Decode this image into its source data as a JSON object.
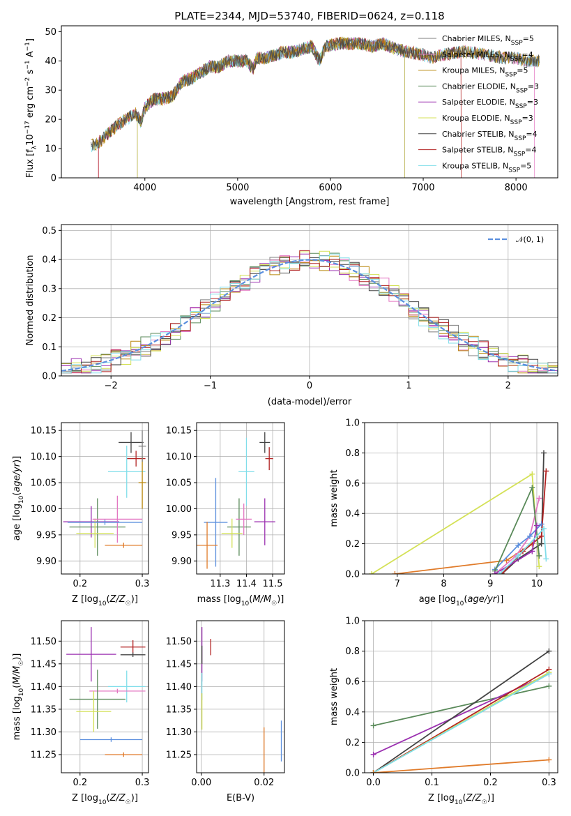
{
  "title": "PLATE=2344, MJD=53740, FIBERID=0624, z=0.118",
  "colors": {
    "Chabrier MILES": "#7f7f7f",
    "Salpeter MILES": "#e377c2",
    "Kroupa MILES": "#b8860b",
    "Chabrier ELODIE": "#5a8a5a",
    "Salpeter ELODIE": "#9b30b0",
    "Kroupa ELODIE": "#d4e157",
    "Chabrier STELIB": "#444444",
    "Salpeter STELIB": "#b22222",
    "Kroupa STELIB": "#80deea",
    "orange": "#e07b2a",
    "blue": "#5b8fde"
  },
  "chart_data": [
    {
      "id": "spectrum",
      "type": "line",
      "title": "PLATE=2344, MJD=53740, FIBERID=0624, z=0.118",
      "xlabel": "wavelength [Angstrom, rest frame]",
      "ylabel": "Flux [f_λ10⁻¹⁷ erg cm⁻² s⁻¹ A⁻¹]",
      "xlim": [
        3100,
        8450
      ],
      "ylim": [
        0,
        52
      ],
      "xticks": [
        "4000",
        "5000",
        "6000",
        "7000",
        "8000"
      ],
      "yticks": [
        "0",
        "10",
        "20",
        "30",
        "40",
        "50"
      ],
      "legend_placement": "right",
      "legend": [
        {
          "pre": "Chabrier MILES, N",
          "sub": "SSP",
          "post": "=5"
        },
        {
          "pre": "Salpeter MILES, N",
          "sub": "SSP",
          "post": "=4"
        },
        {
          "pre": "Kroupa MILES, N",
          "sub": "SSP",
          "post": "=5"
        },
        {
          "pre": "Chabrier ELODIE, N",
          "sub": "SSP",
          "post": "=3"
        },
        {
          "pre": "Salpeter ELODIE, N",
          "sub": "SSP",
          "post": "=3"
        },
        {
          "pre": "Kroupa ELODIE, N",
          "sub": "SSP",
          "post": "=3"
        },
        {
          "pre": "Chabrier STELIB, N",
          "sub": "SSP",
          "post": "=4"
        },
        {
          "pre": "Salpeter STELIB, N",
          "sub": "SSP",
          "post": "=4"
        },
        {
          "pre": "Kroupa STELIB, N",
          "sub": "SSP",
          "post": "=5"
        }
      ],
      "envelope": [
        [
          3420,
          11
        ],
        [
          3500,
          12
        ],
        [
          3600,
          15
        ],
        [
          3700,
          18
        ],
        [
          3800,
          20
        ],
        [
          3900,
          22
        ],
        [
          3960,
          19
        ],
        [
          4000,
          24
        ],
        [
          4100,
          27
        ],
        [
          4200,
          27
        ],
        [
          4300,
          28
        ],
        [
          4400,
          33
        ],
        [
          4500,
          34
        ],
        [
          4600,
          36
        ],
        [
          4700,
          38
        ],
        [
          4800,
          38
        ],
        [
          4900,
          40
        ],
        [
          5000,
          40
        ],
        [
          5100,
          40
        ],
        [
          5170,
          37
        ],
        [
          5200,
          41
        ],
        [
          5300,
          41
        ],
        [
          5400,
          42
        ],
        [
          5500,
          43
        ],
        [
          5600,
          43
        ],
        [
          5700,
          44
        ],
        [
          5800,
          45
        ],
        [
          5880,
          40
        ],
        [
          5950,
          45
        ],
        [
          6100,
          46
        ],
        [
          6300,
          46
        ],
        [
          6450,
          45
        ],
        [
          6560,
          46
        ],
        [
          6700,
          44
        ],
        [
          6850,
          43
        ],
        [
          7000,
          42
        ],
        [
          7100,
          41
        ],
        [
          7200,
          42
        ],
        [
          7400,
          43
        ],
        [
          7500,
          43
        ],
        [
          7700,
          42
        ],
        [
          7850,
          41
        ],
        [
          8000,
          41
        ],
        [
          8100,
          40
        ],
        [
          8200,
          40
        ]
      ],
      "cuts": {
        "Salpeter MILES": [
          3500,
          8200
        ],
        "Chabrier ELODIE": [
          3920,
          6800
        ],
        "Salpeter ELODIE": [
          3920,
          6800
        ],
        "Kroupa ELODIE": [
          3920,
          6800
        ],
        "Salpeter STELIB": [
          3500,
          7410
        ],
        "Kroupa STELIB": [
          3420,
          8250
        ],
        "Chabrier MILES": [
          3420,
          8250
        ],
        "Kroupa MILES": [
          3420,
          8250
        ],
        "Chabrier STELIB": [
          3420,
          8250
        ]
      }
    },
    {
      "id": "residuals",
      "type": "line",
      "xlabel": "(data-model)/error",
      "ylabel": "Normed distribution",
      "xlim": [
        -2.5,
        2.5
      ],
      "ylim": [
        0,
        0.52
      ],
      "xticks": [
        {
          "v": -2,
          "t": "−2"
        },
        {
          "v": -1,
          "t": "−1"
        },
        {
          "v": 0,
          "t": "0"
        },
        {
          "v": 1,
          "t": "1"
        },
        {
          "v": 2,
          "t": "2"
        }
      ],
      "yticks": [
        "0.0",
        "0.1",
        "0.2",
        "0.3",
        "0.4",
        "0.5"
      ],
      "grid": true,
      "legend_placement": "top-right",
      "legend": [
        "𝒩(0, 1)"
      ],
      "bin_width": 0.1
    },
    {
      "id": "age-vs-z",
      "type": "scatter",
      "xlabel": "Z [log₁₀(Z/Z☉)]",
      "ylabel": "age  [log₁₀(age/yr)]",
      "xlim": [
        0.17,
        0.31
      ],
      "ylim": [
        9.875,
        10.165
      ],
      "xticks": [
        "0.2",
        "0.3"
      ],
      "yticks": [
        "9.90",
        "9.95",
        "10.00",
        "10.05",
        "10.10",
        "10.15"
      ],
      "grid": true,
      "points": [
        {
          "series": "Chabrier STELIB",
          "x": 0.282,
          "y": 10.127,
          "xe": 0.02,
          "ye": 0.02
        },
        {
          "series": "Salpeter STELIB",
          "x": 0.29,
          "y": 10.096,
          "xe": 0.015,
          "ye": 0.015
        },
        {
          "series": "Kroupa STELIB",
          "x": 0.275,
          "y": 10.071,
          "xe": 0.03,
          "ye": 0.05
        },
        {
          "series": "Salpeter ELODIE",
          "x": 0.218,
          "y": 9.975,
          "xe": 0.045,
          "ye": 0.03
        },
        {
          "series": "Chabrier ELODIE",
          "x": 0.228,
          "y": 9.965,
          "xe": 0.045,
          "ye": 0.055
        },
        {
          "series": "Kroupa ELODIE",
          "x": 0.224,
          "y": 9.953,
          "xe": 0.03,
          "ye": 0.028
        },
        {
          "series": "Salpeter MILES",
          "x": 0.26,
          "y": 9.98,
          "xe": 0.04,
          "ye": 0.045
        },
        {
          "series": "Kroupa MILES",
          "x": 0.3,
          "y": 10.05,
          "xe": 0.006,
          "ye": 0.05
        },
        {
          "series": "Chabrier MILES",
          "x": 0.3,
          "y": 10.12,
          "xe": 0.006,
          "ye": 0.03
        },
        {
          "series": "blue",
          "x": 0.24,
          "y": 9.974,
          "xe": 0.06,
          "ye": 0.005
        },
        {
          "series": "orange",
          "x": 0.27,
          "y": 9.93,
          "xe": 0.03,
          "ye": 0.005
        }
      ]
    },
    {
      "id": "age-vs-mass",
      "type": "scatter",
      "xlabel": "mass [log₁₀(M/M☉)]",
      "ylabel": "",
      "xlim": [
        11.21,
        11.545
      ],
      "ylim": [
        9.875,
        10.165
      ],
      "xticks": [
        "11.3",
        "11.4",
        "11.5"
      ],
      "yticks": [
        "9.90",
        "9.95",
        "10.00",
        "10.05",
        "10.10",
        "10.15"
      ],
      "grid": true,
      "points": [
        {
          "series": "Chabrier STELIB",
          "x": 11.47,
          "y": 10.127,
          "xe": 0.02,
          "ye": 0.02
        },
        {
          "series": "Salpeter STELIB",
          "x": 11.487,
          "y": 10.096,
          "xe": 0.015,
          "ye": 0.022
        },
        {
          "series": "Kroupa STELIB",
          "x": 11.4,
          "y": 10.071,
          "xe": 0.03,
          "ye": 0.065
        },
        {
          "series": "Salpeter ELODIE",
          "x": 11.47,
          "y": 9.975,
          "xe": 0.04,
          "ye": 0.045
        },
        {
          "series": "Chabrier ELODIE",
          "x": 11.372,
          "y": 9.965,
          "xe": 0.045,
          "ye": 0.055
        },
        {
          "series": "Kroupa ELODIE",
          "x": 11.345,
          "y": 9.953,
          "xe": 0.04,
          "ye": 0.028
        },
        {
          "series": "Salpeter MILES",
          "x": 11.39,
          "y": 9.98,
          "xe": 0.03,
          "ye": 0.03
        },
        {
          "series": "blue",
          "x": 11.283,
          "y": 9.974,
          "xe": 0.045,
          "ye": 0.085
        },
        {
          "series": "orange",
          "x": 11.25,
          "y": 9.93,
          "xe": 0.04,
          "ye": 0.045
        }
      ]
    },
    {
      "id": "weight-vs-age",
      "type": "line",
      "xlabel": "age  [log₁₀(age/yr)]",
      "ylabel": "mass weight",
      "xlim": [
        6.3,
        10.45
      ],
      "ylim": [
        0,
        1
      ],
      "xticks": [
        "7",
        "8",
        "9",
        "10"
      ],
      "yticks": [
        "0.0",
        "0.2",
        "0.4",
        "0.6",
        "0.8",
        "1.0"
      ],
      "grid": true,
      "series": [
        {
          "name": "Kroupa ELODIE",
          "x": [
            6.45,
            9.9,
            10.05
          ],
          "y": [
            0.0,
            0.66,
            0.05
          ]
        },
        {
          "name": "orange",
          "x": [
            6.95,
            9.35,
            9.9
          ],
          "y": [
            0.0,
            0.09,
            0.2
          ]
        },
        {
          "name": "Chabrier STELIB",
          "x": [
            9.25,
            9.6,
            10.1,
            10.15
          ],
          "y": [
            0.0,
            0.1,
            0.2,
            0.8
          ]
        },
        {
          "name": "Salpeter STELIB",
          "x": [
            9.25,
            9.7,
            10.1,
            10.2
          ],
          "y": [
            0.0,
            0.15,
            0.25,
            0.68
          ]
        },
        {
          "name": "Salpeter MILES",
          "x": [
            9.1,
            9.55,
            9.85,
            10.05
          ],
          "y": [
            0.0,
            0.12,
            0.25,
            0.5
          ]
        },
        {
          "name": "blue",
          "x": [
            9.1,
            9.6,
            9.85,
            10.1
          ],
          "y": [
            0.03,
            0.19,
            0.25,
            0.33
          ]
        },
        {
          "name": "Chabrier ELODIE",
          "x": [
            9.1,
            9.9,
            10.05
          ],
          "y": [
            0.02,
            0.57,
            0.12
          ]
        },
        {
          "name": "Salpeter ELODIE",
          "x": [
            9.1,
            9.9,
            10.0
          ],
          "y": [
            0.0,
            0.15,
            0.32
          ]
        },
        {
          "name": "Kroupa STELIB",
          "x": [
            9.2,
            9.6,
            10.15,
            10.2
          ],
          "y": [
            0.0,
            0.12,
            0.3,
            0.1
          ]
        }
      ]
    },
    {
      "id": "mass-vs-z",
      "type": "scatter",
      "xlabel": "Z [log₁₀(Z/Z☉)]",
      "ylabel": "mass [log₁₀(M/M☉)]",
      "xlim": [
        0.17,
        0.31
      ],
      "ylim": [
        11.21,
        11.545
      ],
      "xticks": [
        "0.2",
        "0.3"
      ],
      "yticks": [
        "11.25",
        "11.30",
        "11.35",
        "11.40",
        "11.45",
        "11.50"
      ],
      "grid": true,
      "points": [
        {
          "series": "Salpeter STELIB",
          "x": 0.285,
          "y": 11.487,
          "xe": 0.02,
          "ye": 0.015
        },
        {
          "series": "Salpeter ELODIE",
          "x": 0.218,
          "y": 11.471,
          "xe": 0.04,
          "ye": 0.06
        },
        {
          "series": "Chabrier STELIB",
          "x": 0.285,
          "y": 11.47,
          "xe": 0.02,
          "ye": 0.005
        },
        {
          "series": "Kroupa STELIB",
          "x": 0.275,
          "y": 11.4,
          "xe": 0.03,
          "ye": 0.035
        },
        {
          "series": "Salpeter MILES",
          "x": 0.26,
          "y": 11.39,
          "xe": 0.045,
          "ye": 0.005
        },
        {
          "series": "Chabrier ELODIE",
          "x": 0.228,
          "y": 11.372,
          "xe": 0.045,
          "ye": 0.065
        },
        {
          "series": "Kroupa ELODIE",
          "x": 0.222,
          "y": 11.345,
          "xe": 0.028,
          "ye": 0.045
        },
        {
          "series": "blue",
          "x": 0.25,
          "y": 11.283,
          "xe": 0.05,
          "ye": 0.005
        },
        {
          "series": "orange",
          "x": 0.27,
          "y": 11.25,
          "xe": 0.03,
          "ye": 0.005
        }
      ]
    },
    {
      "id": "mass-vs-ebv",
      "type": "scatter",
      "xlabel": "E(B-V)",
      "ylabel": "",
      "xlim": [
        -0.0015,
        0.0265
      ],
      "ylim": [
        11.21,
        11.545
      ],
      "xticks": [
        "0.00",
        "0.02"
      ],
      "yticks": [
        "11.25",
        "11.30",
        "11.35",
        "11.40",
        "11.45",
        "11.50"
      ],
      "grid": true,
      "points": [
        {
          "series": "Salpeter STELIB",
          "x": 0.003,
          "y": 11.487,
          "xe": 0,
          "ye": 0.018
        },
        {
          "series": "Salpeter ELODIE",
          "x": 0.0002,
          "y": 11.471,
          "xe": 0,
          "ye": 0.06
        },
        {
          "series": "Chabrier STELIB",
          "x": 0.0002,
          "y": 11.47,
          "xe": 0,
          "ye": 0.02
        },
        {
          "series": "Kroupa STELIB",
          "x": 0.0002,
          "y": 11.4,
          "xe": 0,
          "ye": 0.03
        },
        {
          "series": "Kroupa ELODIE",
          "x": 0.0002,
          "y": 11.345,
          "xe": 0,
          "ye": 0.04
        },
        {
          "series": "blue",
          "x": 0.0255,
          "y": 11.28,
          "xe": 0,
          "ye": 0.045
        },
        {
          "series": "orange",
          "x": 0.02,
          "y": 11.25,
          "xe": 0,
          "ye": 0.06
        }
      ]
    },
    {
      "id": "weight-vs-z",
      "type": "line",
      "xlabel": "Z [log₁₀(Z/Z☉)]",
      "ylabel": "mass weight",
      "xlim": [
        -0.015,
        0.315
      ],
      "ylim": [
        0,
        1
      ],
      "xticks": [
        "0.0",
        "0.1",
        "0.2",
        "0.3"
      ],
      "yticks": [
        "0.0",
        "0.2",
        "0.4",
        "0.6",
        "0.8",
        "1.0"
      ],
      "grid": true,
      "series": [
        {
          "name": "Chabrier ELODIE",
          "x": [
            0.0,
            0.3
          ],
          "y": [
            0.31,
            0.57
          ]
        },
        {
          "name": "Salpeter ELODIE",
          "x": [
            0.0,
            0.3
          ],
          "y": [
            0.12,
            0.65
          ]
        },
        {
          "name": "Chabrier STELIB",
          "x": [
            0.0,
            0.3
          ],
          "y": [
            0.0,
            0.8
          ]
        },
        {
          "name": "Salpeter STELIB",
          "x": [
            0.0,
            0.3
          ],
          "y": [
            0.0,
            0.68
          ]
        },
        {
          "name": "Kroupa ELODIE",
          "x": [
            0.0,
            0.3
          ],
          "y": [
            0.0,
            0.66
          ]
        },
        {
          "name": "Kroupa STELIB",
          "x": [
            0.0,
            0.3
          ],
          "y": [
            0.0,
            0.65
          ]
        },
        {
          "name": "orange",
          "x": [
            0.0,
            0.3
          ],
          "y": [
            0.0,
            0.085
          ]
        }
      ]
    }
  ]
}
